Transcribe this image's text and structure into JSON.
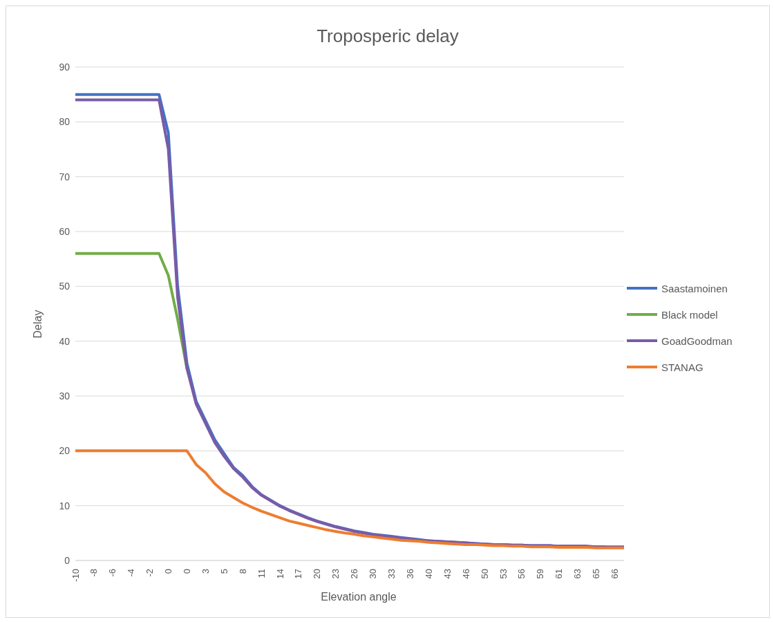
{
  "chart_data": {
    "type": "line",
    "title": "Troposperic delay",
    "xlabel": "Elevation angle",
    "ylabel": "Delay",
    "categories": [
      "-10",
      null,
      "-8",
      null,
      "-6",
      null,
      "-4",
      null,
      "-2",
      null,
      "0",
      null,
      "0",
      null,
      "3",
      null,
      "5",
      null,
      "8",
      null,
      "11",
      null,
      "14",
      null,
      "17",
      null,
      "20",
      null,
      "23",
      null,
      "26",
      null,
      "30",
      null,
      "33",
      null,
      "36",
      null,
      "40",
      null,
      "43",
      null,
      "46",
      null,
      "50",
      null,
      "53",
      null,
      "56",
      null,
      "59",
      null,
      "61",
      null,
      "63",
      null,
      "65",
      null,
      "66",
      null
    ],
    "series": [
      {
        "name": "Saastamoinen",
        "color": "#4472c4",
        "values": [
          85,
          85,
          85,
          85,
          85,
          85,
          85,
          85,
          85,
          85,
          78,
          50,
          36,
          29,
          25.5,
          22,
          19.5,
          17,
          15.5,
          13.5,
          12,
          11,
          10,
          9.2,
          8.5,
          7.8,
          7.2,
          6.7,
          6.2,
          5.8,
          5.4,
          5.1,
          4.8,
          4.6,
          4.4,
          4.2,
          4,
          3.8,
          3.6,
          3.5,
          3.4,
          3.3,
          3.2,
          3.1,
          3,
          2.9,
          2.9,
          2.8,
          2.8,
          2.7,
          2.7,
          2.7,
          2.6,
          2.6,
          2.6,
          2.6,
          2.5,
          2.5,
          null,
          null
        ]
      },
      {
        "name": "Black model",
        "color": "#70ad47",
        "values": [
          56,
          56,
          56,
          56,
          56,
          56,
          56,
          56,
          56,
          56,
          52,
          44,
          35,
          null,
          null,
          null,
          null,
          null,
          null,
          null,
          null,
          null,
          null,
          null,
          null,
          null,
          null,
          null,
          null,
          null,
          null,
          null,
          null,
          null,
          null,
          null,
          null,
          null,
          null,
          null,
          null,
          null,
          null,
          null,
          null,
          null,
          null,
          null,
          null,
          null,
          null,
          null,
          null,
          null,
          null,
          null,
          null,
          null,
          null,
          null
        ]
      },
      {
        "name": "GoadGoodman",
        "color": "#7a5ba6",
        "values": [
          84,
          84,
          84,
          84,
          84,
          84,
          84,
          84,
          84,
          84,
          75,
          48,
          35,
          28.5,
          25,
          21.5,
          19,
          16.8,
          15.2,
          13.3,
          11.9,
          10.9,
          9.9,
          9.1,
          8.4,
          7.7,
          7.1,
          6.6,
          6.1,
          5.7,
          5.3,
          5,
          4.7,
          4.5,
          4.3,
          4.1,
          3.9,
          3.7,
          3.6,
          3.5,
          3.4,
          3.3,
          3.2,
          3.1,
          3,
          2.9,
          2.9,
          2.8,
          2.8,
          2.7,
          2.7,
          2.7,
          2.6,
          2.6,
          2.6,
          2.6,
          2.5,
          2.5,
          2.5,
          2.5
        ]
      },
      {
        "name": "STANAG",
        "color": "#ed7d31",
        "values": [
          20,
          20,
          20,
          20,
          20,
          20,
          20,
          20,
          20,
          20,
          20,
          20,
          20,
          17.5,
          16,
          14,
          12.5,
          11.5,
          10.5,
          9.7,
          9,
          8.4,
          7.8,
          7.2,
          6.8,
          6.4,
          6,
          5.6,
          5.3,
          5,
          4.8,
          4.5,
          4.3,
          4.1,
          3.9,
          3.7,
          3.6,
          3.5,
          3.3,
          3.2,
          3.1,
          3,
          2.9,
          2.9,
          2.8,
          2.7,
          2.7,
          2.6,
          2.6,
          2.5,
          2.5,
          2.5,
          2.4,
          2.4,
          2.4,
          2.4,
          2.3,
          2.3,
          2.3,
          2.3
        ]
      }
    ],
    "ylim": [
      0,
      90
    ],
    "yticks": [
      0,
      10,
      20,
      30,
      40,
      50,
      60,
      70,
      80,
      90
    ],
    "grid": "y",
    "legend": "right",
    "marker": "none",
    "line_style": "solid"
  }
}
